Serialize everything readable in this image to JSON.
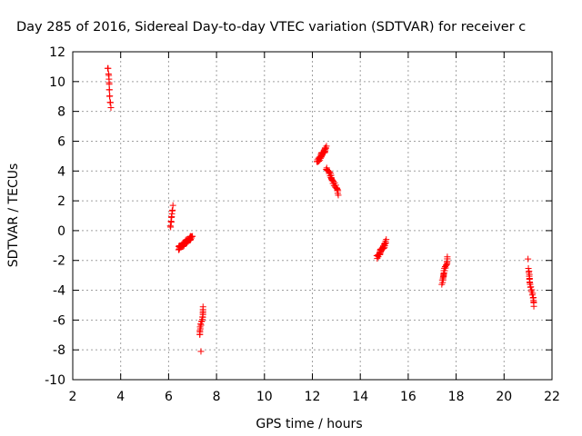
{
  "chart_data": {
    "type": "scatter",
    "title": "Day 285 of 2016, Sidereal Day-to-day VTEC variation (SDTVAR) for receiver c",
    "xlabel": "GPS time / hours",
    "ylabel": "SDTVAR / TECUs",
    "xlim": [
      2,
      22
    ],
    "ylim": [
      -10,
      12
    ],
    "xticks": [
      "2",
      "4",
      "6",
      "8",
      "10",
      "12",
      "14",
      "16",
      "18",
      "20",
      "22"
    ],
    "yticks": [
      "-10",
      "-8",
      "-6",
      "-4",
      "-2",
      "0",
      "2",
      "4",
      "6",
      "8",
      "10",
      "12"
    ],
    "grid": true,
    "marker": "+",
    "color": "#ff0000",
    "segments": [
      {
        "x": [
          3.45,
          3.6
        ],
        "y": [
          11.0,
          8.3
        ],
        "n": 14
      },
      {
        "x": [
          6.05,
          6.2
        ],
        "y": [
          0.2,
          1.6
        ],
        "n": 10
      },
      {
        "x": [
          6.4,
          7.0
        ],
        "y": [
          -1.2,
          -0.4
        ],
        "n": 40
      },
      {
        "x": [
          7.3,
          7.45
        ],
        "y": [
          -7.0,
          -5.2
        ],
        "n": 18
      },
      {
        "x": [
          12.2,
          12.6
        ],
        "y": [
          4.6,
          5.6
        ],
        "n": 35
      },
      {
        "x": [
          12.6,
          13.1
        ],
        "y": [
          4.2,
          2.5
        ],
        "n": 30
      },
      {
        "x": [
          14.7,
          15.1
        ],
        "y": [
          -1.8,
          -0.7
        ],
        "n": 30
      },
      {
        "x": [
          17.4,
          17.65
        ],
        "y": [
          -3.5,
          -1.8
        ],
        "n": 25
      },
      {
        "x": [
          21.0,
          21.25
        ],
        "y": [
          -2.6,
          -5.0
        ],
        "n": 22
      }
    ],
    "points": [
      [
        7.35,
        -8.1
      ],
      [
        21.0,
        -1.9
      ]
    ]
  }
}
